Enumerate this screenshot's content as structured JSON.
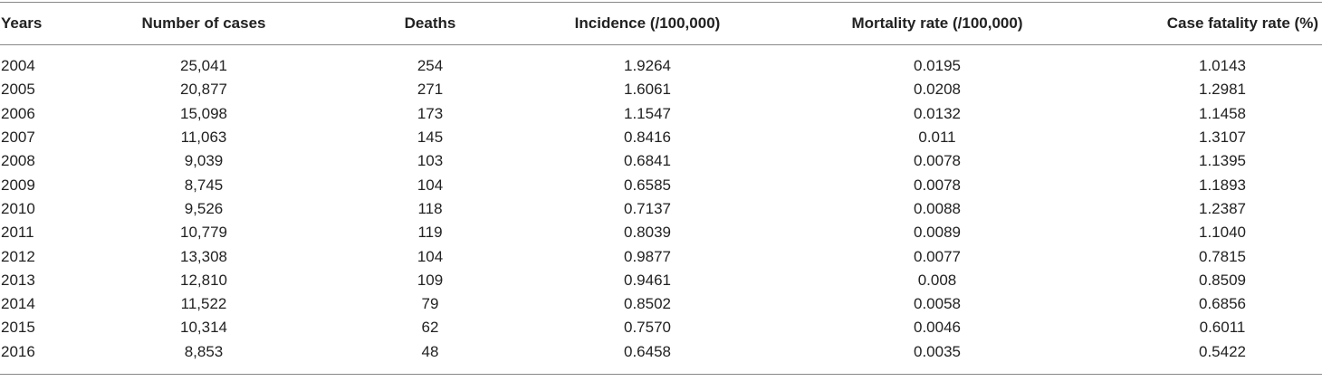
{
  "table": {
    "headers": [
      "Years",
      "Number of cases",
      "Deaths",
      "Incidence (/100,000)",
      "Mortality rate (/100,000)",
      "Case fatality rate (%)"
    ],
    "rows": [
      [
        "2004",
        "25,041",
        "254",
        "1.9264",
        "0.0195",
        "1.0143"
      ],
      [
        "2005",
        "20,877",
        "271",
        "1.6061",
        "0.0208",
        "1.2981"
      ],
      [
        "2006",
        "15,098",
        "173",
        "1.1547",
        "0.0132",
        "1.1458"
      ],
      [
        "2007",
        "11,063",
        "145",
        "0.8416",
        "0.011",
        "1.3107"
      ],
      [
        "2008",
        "9,039",
        "103",
        "0.6841",
        "0.0078",
        "1.1395"
      ],
      [
        "2009",
        "8,745",
        "104",
        "0.6585",
        "0.0078",
        "1.1893"
      ],
      [
        "2010",
        "9,526",
        "118",
        "0.7137",
        "0.0088",
        "1.2387"
      ],
      [
        "2011",
        "10,779",
        "119",
        "0.8039",
        "0.0089",
        "1.1040"
      ],
      [
        "2012",
        "13,308",
        "104",
        "0.9877",
        "0.0077",
        "0.7815"
      ],
      [
        "2013",
        "12,810",
        "109",
        "0.9461",
        "0.008",
        "0.8509"
      ],
      [
        "2014",
        "11,522",
        "79",
        "0.8502",
        "0.0058",
        "0.6856"
      ],
      [
        "2015",
        "10,314",
        "62",
        "0.7570",
        "0.0046",
        "0.6011"
      ],
      [
        "2016",
        "8,853",
        "48",
        "0.6458",
        "0.0035",
        "0.5422"
      ]
    ]
  }
}
